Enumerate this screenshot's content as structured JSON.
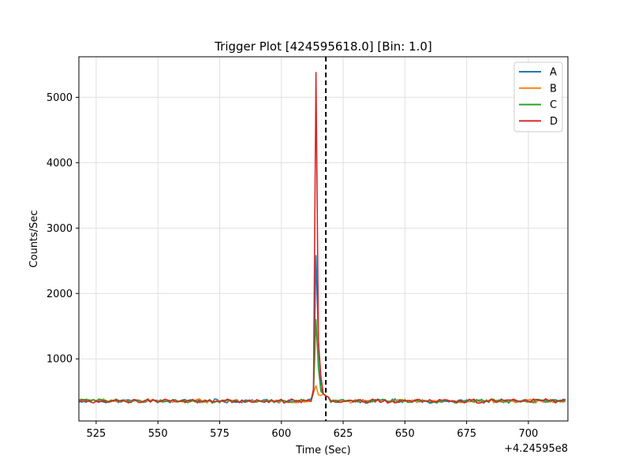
{
  "chart_data": {
    "type": "line",
    "title": "Trigger Plot [424595618.0] [Bin: 1.0]",
    "xlabel": "Time (Sec)",
    "ylabel": "Counts/Sec",
    "x_offset_label": "+4.24595e8",
    "xlim": [
      518,
      716
    ],
    "ylim": [
      50,
      5620
    ],
    "xticks": [
      525,
      550,
      575,
      600,
      625,
      650,
      675,
      700
    ],
    "yticks": [
      1000,
      2000,
      3000,
      4000,
      5000
    ],
    "grid": true,
    "legend_position": "top-right",
    "trigger_time": 618,
    "time_start": 518,
    "time_end": 715,
    "baseline": 355,
    "series": [
      {
        "name": "A",
        "color": "#1f77b4",
        "peak": 2580,
        "seed": 11
      },
      {
        "name": "B",
        "color": "#ff7f0e",
        "peak": 590,
        "seed": 23
      },
      {
        "name": "C",
        "color": "#2ca02c",
        "peak": 1600,
        "seed": 37
      },
      {
        "name": "D",
        "color": "#d62728",
        "peak": 5380,
        "seed": 53
      }
    ]
  }
}
